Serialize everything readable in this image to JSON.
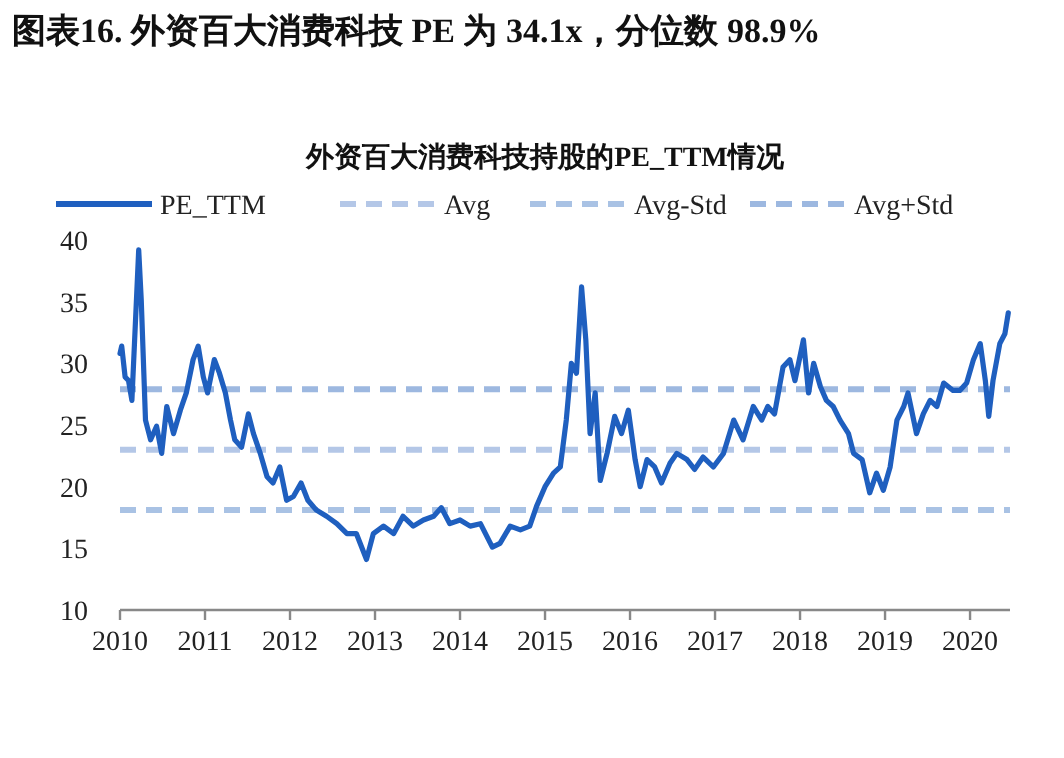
{
  "chart_data": {
    "type": "line",
    "title": "图表16. 外资百大消费科技 PE 为 34.1x，分位数 98.9%",
    "subtitle": "外资百大消费科技持股的PE_TTM情况",
    "x": [
      2010.0,
      2010.02,
      2010.06,
      2010.1,
      2010.14,
      2010.22,
      2010.25,
      2010.3,
      2010.36,
      2010.43,
      2010.49,
      2010.55,
      2010.63,
      2010.71,
      2010.78,
      2010.86,
      2010.92,
      2010.98,
      2011.03,
      2011.11,
      2011.17,
      2011.24,
      2011.3,
      2011.35,
      2011.43,
      2011.51,
      2011.57,
      2011.65,
      2011.73,
      2011.8,
      2011.88,
      2011.96,
      2012.04,
      2012.13,
      2012.21,
      2012.31,
      2012.43,
      2012.55,
      2012.67,
      2012.78,
      2012.9,
      2012.98,
      2013.1,
      2013.22,
      2013.33,
      2013.45,
      2013.57,
      2013.69,
      2013.78,
      2013.88,
      2014.0,
      2014.12,
      2014.24,
      2014.38,
      2014.47,
      2014.59,
      2014.71,
      2014.82,
      2014.9,
      2015.0,
      2015.1,
      2015.18,
      2015.25,
      2015.31,
      2015.37,
      2015.43,
      2015.48,
      2015.53,
      2015.59,
      2015.65,
      2015.73,
      2015.82,
      2015.9,
      2015.98,
      2016.06,
      2016.12,
      2016.2,
      2016.29,
      2016.37,
      2016.47,
      2016.55,
      2016.67,
      2016.76,
      2016.86,
      2016.98,
      2017.1,
      2017.22,
      2017.33,
      2017.45,
      2017.55,
      2017.62,
      2017.7,
      2017.8,
      2017.88,
      2017.94,
      2018.04,
      2018.1,
      2018.16,
      2018.24,
      2018.31,
      2018.39,
      2018.47,
      2018.57,
      2018.63,
      2018.73,
      2018.82,
      2018.9,
      2018.98,
      2019.06,
      2019.14,
      2019.22,
      2019.27,
      2019.37,
      2019.45,
      2019.53,
      2019.61,
      2019.69,
      2019.8,
      2019.88,
      2019.96,
      2020.04,
      2020.12,
      2020.18,
      2020.22,
      2020.27,
      2020.35,
      2020.41,
      2020.45
    ],
    "series": [
      {
        "name": "PE_TTM",
        "color": "#1f5fbf",
        "values": [
          30.8,
          31.4,
          28.9,
          28.6,
          27.0,
          39.2,
          35.1,
          25.4,
          23.8,
          24.9,
          22.7,
          26.5,
          24.3,
          26.2,
          27.6,
          30.3,
          31.4,
          28.9,
          27.6,
          30.3,
          29.2,
          27.6,
          25.4,
          23.8,
          23.2,
          25.9,
          24.3,
          22.7,
          20.8,
          20.3,
          21.6,
          18.9,
          19.2,
          20.3,
          18.9,
          18.1,
          17.6,
          17.0,
          16.2,
          16.2,
          14.1,
          16.2,
          16.8,
          16.2,
          17.6,
          16.8,
          17.3,
          17.6,
          18.3,
          17.0,
          17.3,
          16.8,
          17.0,
          15.1,
          15.4,
          16.8,
          16.5,
          16.8,
          18.4,
          20.0,
          21.1,
          21.6,
          25.4,
          30.0,
          29.2,
          36.2,
          31.9,
          24.3,
          27.6,
          20.5,
          22.7,
          25.7,
          24.3,
          26.2,
          22.2,
          20.0,
          22.2,
          21.6,
          20.3,
          21.9,
          22.7,
          22.2,
          21.4,
          22.4,
          21.6,
          22.7,
          25.4,
          23.8,
          26.5,
          25.4,
          26.5,
          25.9,
          29.7,
          30.3,
          28.6,
          31.9,
          27.6,
          30.0,
          28.1,
          27.0,
          26.5,
          25.4,
          24.3,
          22.7,
          22.2,
          19.5,
          21.1,
          19.7,
          21.6,
          25.4,
          26.5,
          27.6,
          24.3,
          25.9,
          27.0,
          26.5,
          28.4,
          27.8,
          27.8,
          28.4,
          30.3,
          31.6,
          28.6,
          25.7,
          28.6,
          31.6,
          32.4,
          34.1
        ]
      }
    ],
    "ref_lines": [
      {
        "axis": "y",
        "value": 23.0,
        "label": "Avg",
        "color": "#b4c7e7",
        "line_style": "dashed"
      },
      {
        "axis": "y",
        "value": 18.1,
        "label": "Avg-Std",
        "color": "#a9c2e4",
        "line_style": "dashed"
      },
      {
        "axis": "y",
        "value": 27.9,
        "label": "Avg+Std",
        "color": "#9db8e0",
        "line_style": "dashed"
      }
    ],
    "xlim": [
      2010,
      2020.47
    ],
    "xticks": [
      2010,
      2011,
      2012,
      2013,
      2014,
      2015,
      2016,
      2017,
      2018,
      2019,
      2020
    ],
    "ylim": [
      10,
      40
    ],
    "yticks": [
      10,
      15,
      20,
      25,
      30,
      35,
      40
    ],
    "legend": "top",
    "grid": false
  }
}
